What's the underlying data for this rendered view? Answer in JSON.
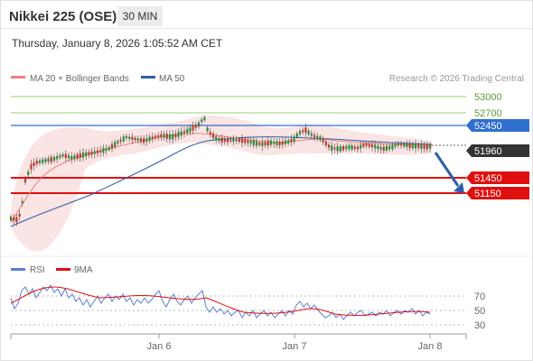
{
  "header": {
    "instrument": "Nikkei 225 (OSE)",
    "timeframe": "30 MIN",
    "datetime": "Thursday, January 8, 2026 1:05:52 AM CET"
  },
  "legend": {
    "ma20_label": "MA 20 + Bollinger Bands",
    "ma50_label": "MA 50",
    "credit": "Research © 2026 Trading Central",
    "rsi_label": "RSI",
    "rsi_ma_label": "9MA"
  },
  "colors": {
    "ma20": "#f08080",
    "ma50": "#2e5fa8",
    "bollinger_fill": "#fbe3e3",
    "resistance_green": "#9ccc7a",
    "pivot_blue": "#2e6fd0",
    "support_red": "#e01010",
    "current_price_bg": "#333333",
    "rsi_line": "#5b7fd6",
    "rsi_ma_line": "#e01010",
    "candle_up": "#2e8b3a",
    "candle_down": "#c0392b",
    "arrow": "#2e5fa8"
  },
  "price_levels": [
    {
      "value": "53000",
      "kind": "resistance"
    },
    {
      "value": "52700",
      "kind": "resistance"
    },
    {
      "value": "52450",
      "kind": "pivot"
    },
    {
      "value": "51960",
      "kind": "current"
    },
    {
      "value": "51450",
      "kind": "support"
    },
    {
      "value": "51150",
      "kind": "support"
    }
  ],
  "rsi_levels": [
    "70",
    "50",
    "30"
  ],
  "x_axis": [
    "Jan 6",
    "Jan 7",
    "Jan 8"
  ]
}
